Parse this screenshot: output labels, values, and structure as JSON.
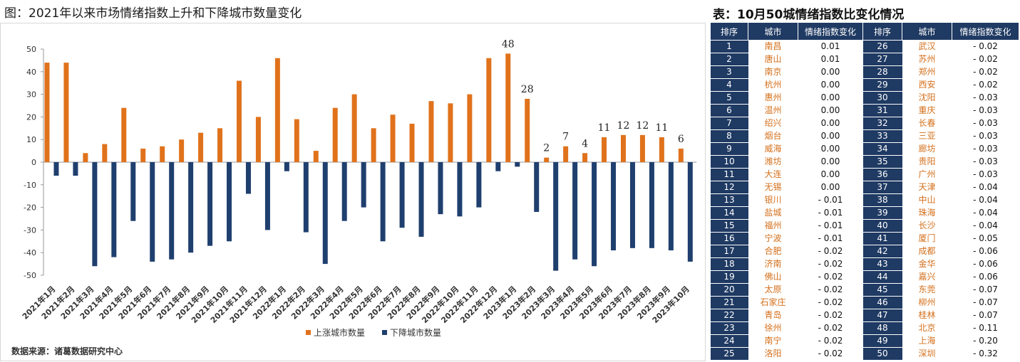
{
  "chart": {
    "title": "图：2021年以来市场情绪指数上升和下降城市数量变化",
    "source": "数据来源：诸葛数据研究中心"
  },
  "chart_data": {
    "type": "bar",
    "title": "图：2021年以来市场情绪指数上升和下降城市数量变化",
    "categories": [
      "2021年1月",
      "2021年2月",
      "2021年3月",
      "2021年4月",
      "2021年5月",
      "2021年6月",
      "2021年7月",
      "2021年8月",
      "2021年9月",
      "2021年10月",
      "2021年11月",
      "2021年12月",
      "2022年1月",
      "2022年2月",
      "2022年3月",
      "2022年4月",
      "2022年5月",
      "2022年6月",
      "2022年7月",
      "2022年8月",
      "2022年9月",
      "2022年10月",
      "2022年11月",
      "2022年12月",
      "2023年1月",
      "2023年2月",
      "2023年3月",
      "2023年4月",
      "2023年5月",
      "2023年6月",
      "2023年7月",
      "2023年8月",
      "2023年9月",
      "2023年10月"
    ],
    "series": [
      {
        "name": "上涨城市数量",
        "color": "#e0721c",
        "values": [
          44,
          44,
          4,
          8,
          24,
          6,
          7,
          10,
          13,
          15,
          36,
          20,
          46,
          19,
          5,
          24,
          30,
          15,
          21,
          17,
          27,
          26,
          30,
          46,
          48,
          28,
          2,
          7,
          4,
          11,
          12,
          12,
          11,
          6
        ]
      },
      {
        "name": "下降城市数量",
        "color": "#1f3f6e",
        "values": [
          -6,
          -6,
          -46,
          -42,
          -26,
          -44,
          -43,
          -40,
          -37,
          -35,
          -14,
          -30,
          -4,
          -31,
          -45,
          -26,
          -20,
          -35,
          -29,
          -33,
          -23,
          -24,
          -20,
          -4,
          -2,
          -22,
          -48,
          -43,
          -46,
          -39,
          -38,
          -38,
          -39,
          -44
        ]
      }
    ],
    "labeled_indices": [
      24,
      25,
      26,
      27,
      28,
      29,
      30,
      31,
      32,
      33
    ],
    "yticks": [
      50,
      40,
      30,
      20,
      10,
      0,
      -10,
      -20,
      -30,
      -40,
      -50
    ],
    "ylim": [
      -50,
      50
    ],
    "xlabel": "",
    "ylabel": "",
    "legend": "bottom-center",
    "grid": false
  },
  "table": {
    "title": "表：10月50城情绪指数比变化情况",
    "headers": [
      "排序",
      "城市",
      "情绪指数变化",
      "排序",
      "城市",
      "情绪指数变化"
    ],
    "rows": [
      [
        "1",
        "南昌",
        "0.01",
        "26",
        "武汉",
        "- 0.02"
      ],
      [
        "2",
        "唐山",
        "0.01",
        "27",
        "苏州",
        "- 0.02"
      ],
      [
        "3",
        "南京",
        "0.00",
        "28",
        "郑州",
        "- 0.02"
      ],
      [
        "4",
        "杭州",
        "0.00",
        "29",
        "西安",
        "- 0.02"
      ],
      [
        "5",
        "惠州",
        "0.00",
        "30",
        "沈阳",
        "- 0.03"
      ],
      [
        "6",
        "温州",
        "0.00",
        "31",
        "重庆",
        "- 0.03"
      ],
      [
        "7",
        "绍兴",
        "0.00",
        "32",
        "长春",
        "- 0.03"
      ],
      [
        "8",
        "烟台",
        "0.00",
        "33",
        "三亚",
        "- 0.03"
      ],
      [
        "9",
        "威海",
        "0.00",
        "34",
        "廊坊",
        "- 0.03"
      ],
      [
        "10",
        "潍坊",
        "0.00",
        "35",
        "贵阳",
        "- 0.03"
      ],
      [
        "11",
        "大连",
        "0.00",
        "36",
        "广州",
        "- 0.03"
      ],
      [
        "12",
        "无锡",
        "0.00",
        "37",
        "天津",
        "- 0.04"
      ],
      [
        "13",
        "银川",
        "- 0.01",
        "38",
        "中山",
        "- 0.04"
      ],
      [
        "14",
        "盐城",
        "- 0.01",
        "39",
        "珠海",
        "- 0.04"
      ],
      [
        "15",
        "福州",
        "- 0.01",
        "40",
        "长沙",
        "- 0.04"
      ],
      [
        "16",
        "宁波",
        "- 0.01",
        "41",
        "厦门",
        "- 0.05"
      ],
      [
        "17",
        "合肥",
        "- 0.02",
        "42",
        "成都",
        "- 0.06"
      ],
      [
        "18",
        "济南",
        "- 0.02",
        "43",
        "金华",
        "- 0.06"
      ],
      [
        "19",
        "佛山",
        "- 0.02",
        "44",
        "嘉兴",
        "- 0.06"
      ],
      [
        "20",
        "太原",
        "- 0.02",
        "45",
        "东莞",
        "- 0.07"
      ],
      [
        "21",
        "石家庄",
        "- 0.02",
        "46",
        "柳州",
        "- 0.07"
      ],
      [
        "22",
        "青岛",
        "- 0.02",
        "47",
        "桂林",
        "- 0.07"
      ],
      [
        "23",
        "徐州",
        "- 0.02",
        "48",
        "北京",
        "- 0.11"
      ],
      [
        "24",
        "南宁",
        "- 0.02",
        "49",
        "上海",
        "- 0.20"
      ],
      [
        "25",
        "洛阳",
        "- 0.02",
        "50",
        "深圳",
        "- 0.32"
      ]
    ]
  }
}
